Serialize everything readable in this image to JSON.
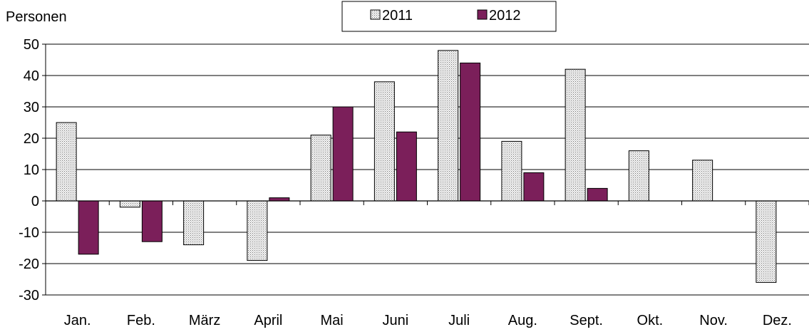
{
  "chart_data": {
    "type": "bar",
    "ylabel": "Personen",
    "categories": [
      "Jan.",
      "Feb.",
      "März",
      "April",
      "Mai",
      "Juni",
      "Juli",
      "Aug.",
      "Sept.",
      "Okt.",
      "Nov.",
      "Dez."
    ],
    "series": [
      {
        "name": "2011",
        "values": [
          25,
          -2,
          -14,
          -19,
          21,
          38,
          48,
          19,
          42,
          16,
          13,
          -26
        ],
        "color": "#eeeeee",
        "pattern": "dotted"
      },
      {
        "name": "2012",
        "values": [
          -17,
          -13,
          0,
          1,
          30,
          22,
          44,
          9,
          4,
          0,
          0,
          0
        ],
        "color": "#7b1f5a"
      }
    ],
    "ylim": [
      -30,
      50
    ],
    "yticks": [
      "50",
      "40",
      "30",
      "20",
      "10",
      "0",
      "-10",
      "-20",
      "-30"
    ],
    "grid": true,
    "legend": "top-center"
  }
}
